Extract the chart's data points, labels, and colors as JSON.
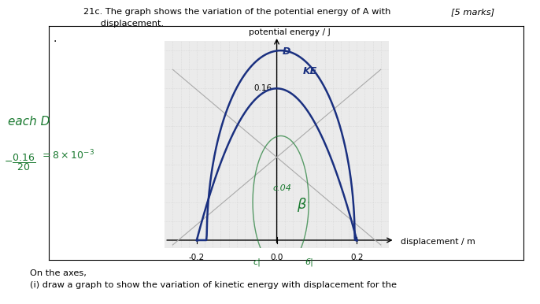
{
  "title_line1": "21c. The graph shows the variation of the potential energy of A with",
  "title_line2": "      displacement.",
  "marks_text": "[5 marks]",
  "ylabel": "potential energy / J",
  "xlabel": "displacement / m",
  "bg_color": "#ffffff",
  "grid_bg": "#ebebeb",
  "blue_color": "#1a3080",
  "green_color": "#1a7a30",
  "gray_color": "#999999",
  "on_axes_text": "On the axes,",
  "on_axes_sub": "(i) draw a graph to show the variation of kinetic energy with displacement for the"
}
